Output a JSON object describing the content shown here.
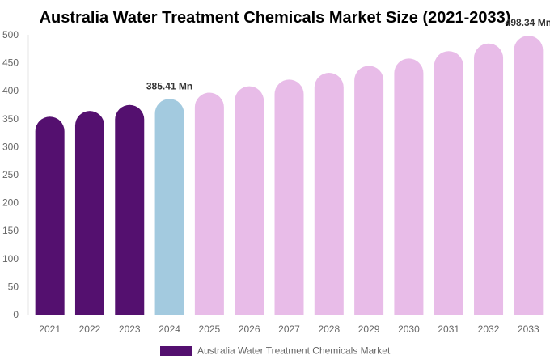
{
  "chart_data": {
    "type": "bar",
    "title": "Australia Water Treatment Chemicals Market Size (2021-2033)",
    "xlabel": "",
    "ylabel": "",
    "ylim": [
      0,
      500
    ],
    "yticks": [
      0,
      50,
      100,
      150,
      200,
      250,
      300,
      350,
      400,
      450,
      500
    ],
    "categories": [
      "2021",
      "2022",
      "2023",
      "2024",
      "2025",
      "2026",
      "2027",
      "2028",
      "2029",
      "2030",
      "2031",
      "2032",
      "2033"
    ],
    "series": [
      {
        "name": "Australia Water Treatment Chemicals Market",
        "values": [
          353.7,
          364.0,
          374.6,
          385.41,
          396.6,
          408.1,
          419.9,
          432.1,
          444.6,
          457.5,
          470.8,
          484.4,
          498.34
        ]
      }
    ],
    "bar_colors": {
      "historical": "#54106f",
      "base_year": "#a3cadf",
      "forecast": "#e8bce8"
    },
    "periods": [
      "historical",
      "historical",
      "historical",
      "base_year",
      "forecast",
      "forecast",
      "forecast",
      "forecast",
      "forecast",
      "forecast",
      "forecast",
      "forecast",
      "forecast"
    ],
    "data_labels": [
      {
        "category": "2024",
        "text": "385.41 Mn"
      },
      {
        "category": "2033",
        "text": "498.34 Mn"
      }
    ],
    "legend": {
      "position": "bottom",
      "label": "Australia Water Treatment Chemicals Market",
      "color": "#54106f"
    },
    "grid": false
  }
}
